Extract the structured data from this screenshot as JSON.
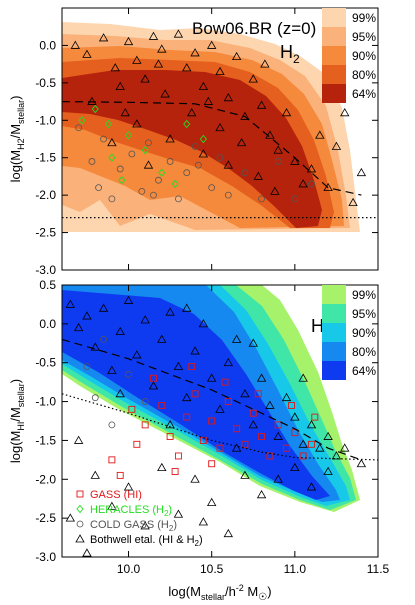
{
  "chart_data": [
    {
      "type": "contour",
      "panel": "top",
      "title": "Bow06.BR (z=0)",
      "species_label": "H",
      "species_sub": "2",
      "ylabel_main": "log(M",
      "ylabel_sub1": "H2",
      "ylabel_mid": "/M",
      "ylabel_sub2": "stellar",
      "ylabel_end": ")",
      "xlim": [
        9.6,
        11.5
      ],
      "ylim": [
        -3.0,
        0.5
      ],
      "yticks": [
        "-3.0",
        "-2.5",
        "-2.0",
        "-1.5",
        "-1.0",
        "-0.5",
        "0.0"
      ],
      "ytick_values": [
        -3.0,
        -2.5,
        -2.0,
        -1.5,
        -1.0,
        -0.5,
        0.0
      ],
      "xticks": [
        10.0,
        10.5,
        11.0,
        11.5
      ],
      "legend": [
        {
          "label": "99%",
          "color": "#fdd6b0"
        },
        {
          "label": "95%",
          "color": "#fbb27a"
        },
        {
          "label": "90%",
          "color": "#f58a3c"
        },
        {
          "label": "80%",
          "color": "#e5601e"
        },
        {
          "label": "64%",
          "color": "#b5230c"
        }
      ],
      "median_line": [
        [
          9.6,
          -0.75
        ],
        [
          10.0,
          -0.76
        ],
        [
          10.4,
          -0.78
        ],
        [
          10.7,
          -0.95
        ],
        [
          11.0,
          -1.5
        ],
        [
          11.2,
          -1.9
        ],
        [
          11.4,
          -2.0
        ]
      ],
      "floor_dotted": -2.3,
      "markers": {
        "bothwell": [
          [
            9.68,
            0.0
          ],
          [
            9.75,
            -0.12
          ],
          [
            9.85,
            0.1
          ],
          [
            9.92,
            -0.3
          ],
          [
            9.95,
            -0.55
          ],
          [
            10.0,
            0.05
          ],
          [
            10.05,
            -0.2
          ],
          [
            10.1,
            -0.45
          ],
          [
            10.15,
            0.12
          ],
          [
            10.2,
            -0.05
          ],
          [
            10.22,
            -0.65
          ],
          [
            10.3,
            0.15
          ],
          [
            10.35,
            -0.3
          ],
          [
            10.4,
            -0.1
          ],
          [
            10.45,
            -0.55
          ],
          [
            10.5,
            0.0
          ],
          [
            10.55,
            -0.35
          ],
          [
            10.6,
            -0.7
          ],
          [
            10.65,
            -0.15
          ],
          [
            10.7,
            -0.95
          ],
          [
            10.75,
            -0.45
          ],
          [
            10.8,
            -0.8
          ],
          [
            10.85,
            -1.2
          ],
          [
            10.9,
            -1.4
          ],
          [
            10.95,
            -0.9
          ],
          [
            11.0,
            -1.55
          ],
          [
            11.05,
            -1.85
          ],
          [
            11.1,
            -1.65
          ],
          [
            11.2,
            -1.9
          ],
          [
            11.3,
            -0.9
          ],
          [
            11.35,
            -2.1
          ],
          [
            11.4,
            -1.7
          ],
          [
            10.05,
            -1.05
          ],
          [
            10.25,
            -1.25
          ],
          [
            10.45,
            -1.45
          ],
          [
            10.6,
            -1.6
          ],
          [
            10.78,
            -1.75
          ],
          [
            9.9,
            -1.3
          ],
          [
            10.12,
            -1.6
          ],
          [
            10.38,
            -0.9
          ],
          [
            10.55,
            -1.1
          ],
          [
            10.68,
            -1.3
          ],
          [
            10.88,
            -1.95
          ],
          [
            11.15,
            -1.2
          ],
          [
            11.25,
            -1.35
          ],
          [
            9.78,
            -0.75
          ],
          [
            9.98,
            -0.9
          ],
          [
            10.18,
            -0.25
          ],
          [
            10.48,
            -0.75
          ],
          [
            10.82,
            -0.25
          ]
        ],
        "heracles": [
          [
            9.72,
            -1.0
          ],
          [
            9.8,
            -0.85
          ],
          [
            9.88,
            -1.05
          ],
          [
            9.9,
            -1.5
          ],
          [
            9.96,
            -1.8
          ],
          [
            10.0,
            -1.2
          ],
          [
            10.1,
            -1.4
          ],
          [
            10.2,
            -1.7
          ],
          [
            10.28,
            -1.85
          ],
          [
            10.35,
            -1.05
          ],
          [
            10.45,
            -1.25
          ]
        ],
        "coldgass": [
          [
            9.7,
            -1.1
          ],
          [
            9.78,
            -1.55
          ],
          [
            9.85,
            -1.25
          ],
          [
            9.9,
            -2.05
          ],
          [
            9.95,
            -1.65
          ],
          [
            10.02,
            -1.45
          ],
          [
            10.08,
            -1.95
          ],
          [
            10.12,
            -1.3
          ],
          [
            10.18,
            -1.8
          ],
          [
            10.25,
            -1.55
          ],
          [
            10.3,
            -2.05
          ],
          [
            10.35,
            -1.7
          ],
          [
            10.4,
            -1.35
          ],
          [
            10.5,
            -1.9
          ],
          [
            10.55,
            -1.5
          ],
          [
            10.6,
            -2.0
          ],
          [
            10.7,
            -1.7
          ],
          [
            10.8,
            -2.05
          ],
          [
            10.9,
            -1.55
          ],
          [
            11.0,
            -2.05
          ],
          [
            11.1,
            -1.85
          ],
          [
            9.82,
            -1.9
          ],
          [
            10.15,
            -2.0
          ],
          [
            10.42,
            -1.6
          ]
        ]
      }
    },
    {
      "type": "contour",
      "panel": "bottom",
      "species_label": "HI",
      "ylabel_main": "log(M",
      "ylabel_sub1": "HI",
      "ylabel_mid": "/M",
      "ylabel_sub2": "stellar",
      "ylabel_end": ")",
      "xlabel_main": "log(M",
      "xlabel_sub": "stellar",
      "xlabel_mid": "/h",
      "xlabel_sup": "-2",
      "xlabel_end": " M",
      "xlabel_sun": "☉",
      "xlabel_close": ")",
      "xlim": [
        9.6,
        11.5
      ],
      "ylim": [
        -3.0,
        0.5
      ],
      "yticks": [
        "-3.0",
        "-2.5",
        "-2.0",
        "-1.5",
        "-1.0",
        "-0.5",
        "0.0",
        "0.5"
      ],
      "ytick_values": [
        -3.0,
        -2.5,
        -2.0,
        -1.5,
        -1.0,
        -0.5,
        0.0,
        0.5
      ],
      "xticks": [
        "10.0",
        "10.5",
        "11.0",
        "11.5"
      ],
      "xtick_values": [
        10.0,
        10.5,
        11.0,
        11.5
      ],
      "legend": [
        {
          "label": "99%",
          "color": "#a6f26a"
        },
        {
          "label": "95%",
          "color": "#3fe6a8"
        },
        {
          "label": "90%",
          "color": "#17c8e8"
        },
        {
          "label": "80%",
          "color": "#1589f0"
        },
        {
          "label": "64%",
          "color": "#0f3bf0"
        }
      ],
      "median_line": [
        [
          9.6,
          -0.2
        ],
        [
          10.0,
          -0.45
        ],
        [
          10.5,
          -0.85
        ],
        [
          10.8,
          -1.15
        ],
        [
          11.0,
          -1.35
        ],
        [
          11.2,
          -1.6
        ],
        [
          11.4,
          -1.75
        ]
      ],
      "lower_dotted": [
        [
          9.6,
          -0.9
        ],
        [
          10.0,
          -1.15
        ],
        [
          10.5,
          -1.5
        ],
        [
          10.8,
          -1.65
        ],
        [
          11.0,
          -1.72
        ],
        [
          11.5,
          -1.75
        ]
      ],
      "markers_legend": [
        {
          "label": "GASS (HI)",
          "color": "#e01818",
          "marker": "square"
        },
        {
          "label": "HERACLES (H",
          "sub": "2",
          "end": ")",
          "color": "#22dd22",
          "marker": "diamond"
        },
        {
          "label": "COLD GASS (H",
          "sub": "2",
          "end": ")",
          "color": "#555555",
          "marker": "circle"
        },
        {
          "label": "Bothwell etal. (HI & H",
          "sub": "2",
          "end": ")",
          "color": "#000000",
          "marker": "triangle"
        }
      ],
      "markers": {
        "bothwell": [
          [
            9.65,
            0.25
          ],
          [
            9.7,
            -0.05
          ],
          [
            9.75,
            0.1
          ],
          [
            9.8,
            -0.3
          ],
          [
            9.85,
            0.2
          ],
          [
            9.9,
            -0.6
          ],
          [
            9.95,
            -0.1
          ],
          [
            10.0,
            0.3
          ],
          [
            10.05,
            -0.4
          ],
          [
            10.1,
            0.05
          ],
          [
            10.15,
            -0.8
          ],
          [
            10.2,
            -0.2
          ],
          [
            10.25,
            0.15
          ],
          [
            10.3,
            -0.55
          ],
          [
            10.35,
            -0.95
          ],
          [
            10.4,
            -0.35
          ],
          [
            10.45,
            0.0
          ],
          [
            10.5,
            -0.7
          ],
          [
            10.55,
            -1.1
          ],
          [
            10.6,
            -0.5
          ],
          [
            10.65,
            -0.2
          ],
          [
            10.7,
            -0.9
          ],
          [
            10.75,
            -1.3
          ],
          [
            10.8,
            -0.7
          ],
          [
            10.85,
            -1.05
          ],
          [
            10.9,
            -1.45
          ],
          [
            10.95,
            -0.95
          ],
          [
            11.0,
            -1.2
          ],
          [
            11.05,
            -1.55
          ],
          [
            11.1,
            -1.3
          ],
          [
            11.15,
            -1.6
          ],
          [
            11.2,
            -1.45
          ],
          [
            11.25,
            -1.7
          ],
          [
            11.3,
            -1.6
          ],
          [
            11.4,
            -1.8
          ],
          [
            9.7,
            -1.5
          ],
          [
            9.8,
            -1.95
          ],
          [
            9.9,
            -2.35
          ],
          [
            10.0,
            -2.1
          ],
          [
            10.1,
            -2.6
          ],
          [
            10.2,
            -1.85
          ],
          [
            10.3,
            -2.45
          ],
          [
            10.4,
            -2.0
          ],
          [
            10.5,
            -2.3
          ],
          [
            10.6,
            -2.7
          ],
          [
            10.7,
            -1.95
          ],
          [
            10.8,
            -2.2
          ],
          [
            10.9,
            -2.0
          ],
          [
            11.0,
            -1.85
          ],
          [
            11.1,
            -2.1
          ],
          [
            9.65,
            -2.5
          ],
          [
            9.75,
            -2.95
          ],
          [
            10.45,
            -2.55
          ],
          [
            11.2,
            -1.9
          ],
          [
            10.25,
            -1.3
          ],
          [
            10.65,
            -1.6
          ],
          [
            9.95,
            -0.9
          ],
          [
            10.35,
            0.2
          ],
          [
            10.75,
            -0.25
          ],
          [
            11.05,
            -0.7
          ]
        ],
        "gass": [
          [
            9.9,
            -1.75
          ],
          [
            9.95,
            -1.95
          ],
          [
            10.05,
            -1.55
          ],
          [
            10.1,
            -1.3
          ],
          [
            10.2,
            -1.05
          ],
          [
            10.25,
            -1.45
          ],
          [
            10.3,
            -1.7
          ],
          [
            10.35,
            -1.2
          ],
          [
            10.4,
            -0.9
          ],
          [
            10.45,
            -1.5
          ],
          [
            10.5,
            -1.25
          ],
          [
            10.55,
            -1.6
          ],
          [
            10.6,
            -1.0
          ],
          [
            10.65,
            -1.35
          ],
          [
            10.7,
            -1.55
          ],
          [
            10.75,
            -1.15
          ],
          [
            10.8,
            -1.45
          ],
          [
            10.85,
            -1.7
          ],
          [
            10.9,
            -1.3
          ],
          [
            10.95,
            -1.6
          ],
          [
            11.0,
            -1.4
          ],
          [
            11.05,
            -1.7
          ],
          [
            11.1,
            -1.55
          ],
          [
            10.15,
            -0.7
          ],
          [
            10.38,
            -0.55
          ],
          [
            10.58,
            -0.75
          ],
          [
            10.78,
            -0.9
          ],
          [
            10.98,
            -1.05
          ],
          [
            11.12,
            -1.2
          ],
          [
            10.02,
            -1.1
          ],
          [
            10.28,
            -1.9
          ],
          [
            10.5,
            -1.8
          ]
        ],
        "coldgass": [
          [
            9.75,
            -0.55
          ],
          [
            9.8,
            -0.95
          ],
          [
            9.85,
            -0.2
          ],
          [
            9.9,
            -1.3
          ],
          [
            10.0,
            -0.65
          ],
          [
            10.1,
            -1.0
          ]
        ]
      }
    }
  ]
}
